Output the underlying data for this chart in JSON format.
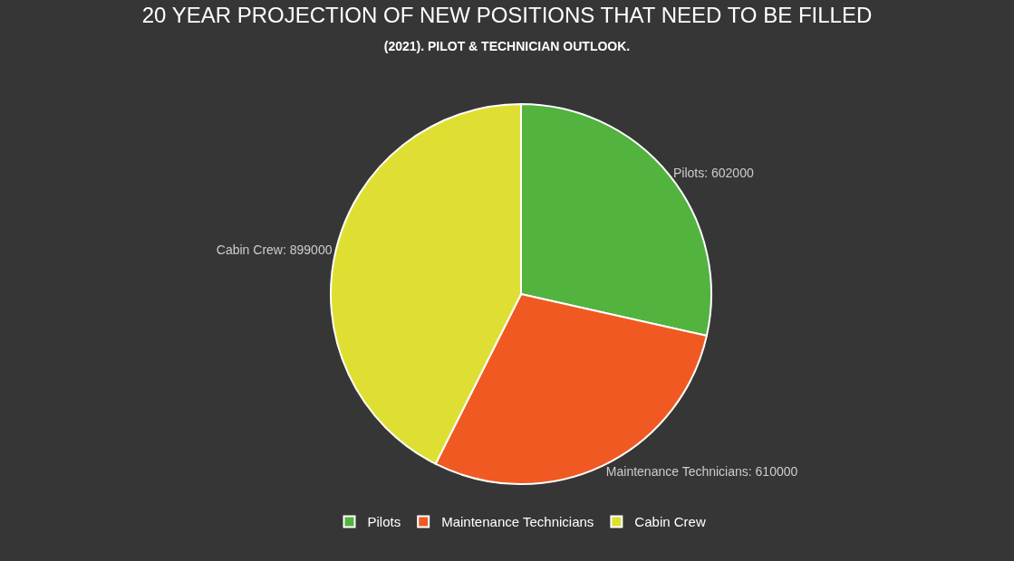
{
  "chart_data": {
    "type": "pie",
    "title": "20 YEAR PROJECTION OF NEW POSITIONS THAT NEED TO BE FILLED",
    "subtitle": "(2021). PILOT & TECHNICIAN OUTLOOK.",
    "categories": [
      "Pilots",
      "Maintenance Technicians",
      "Cabin Crew"
    ],
    "values": [
      602000,
      610000,
      899000
    ],
    "colors": [
      "#52b33f",
      "#f05a22",
      "#dfdf33"
    ],
    "value_labels": [
      "Pilots: 602000",
      "Maintenance Technicians: 610000",
      "Cabin Crew: 899000"
    ],
    "legend": "bottom"
  }
}
